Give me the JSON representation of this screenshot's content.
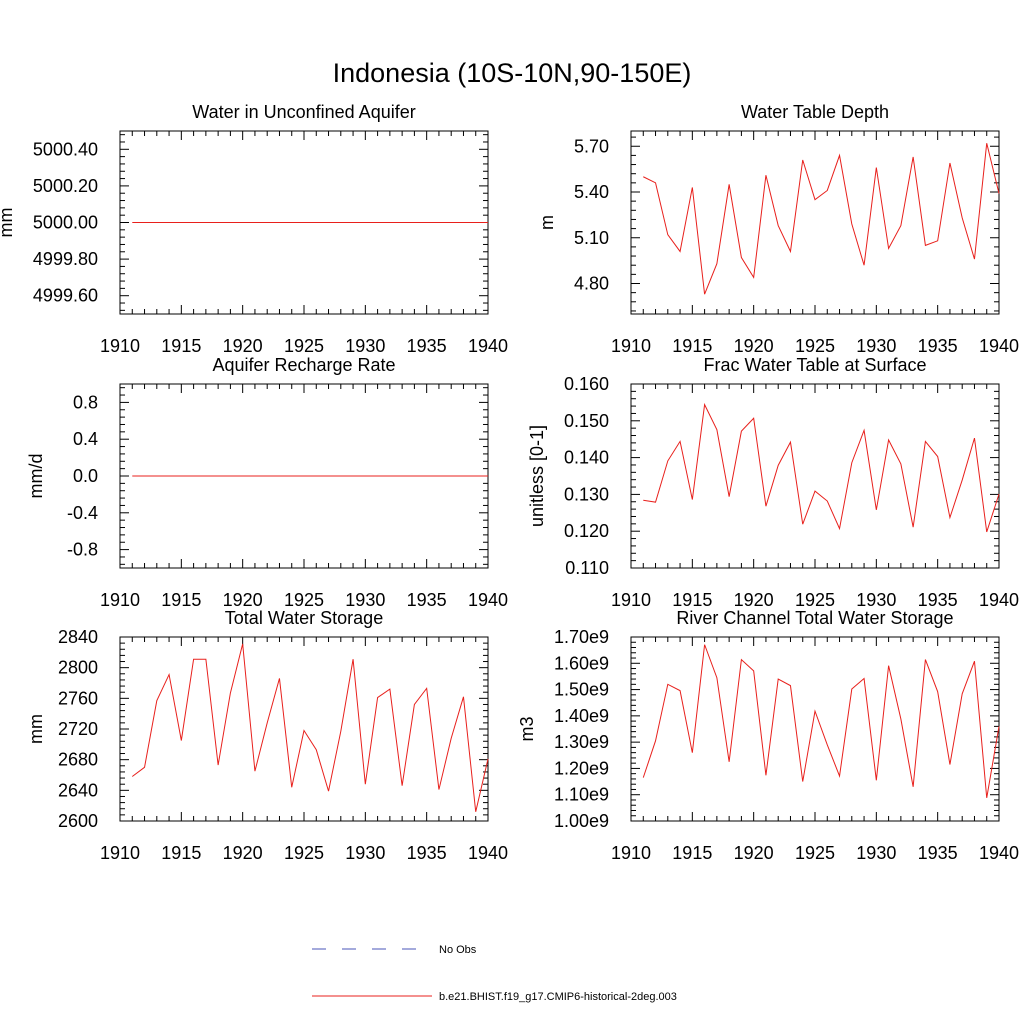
{
  "figure": {
    "title": "Indonesia (10S-10N,90-150E)"
  },
  "legend": {
    "entries": [
      {
        "label": "No Obs",
        "style": "dashed",
        "color": "#4a55b8"
      },
      {
        "label": "b.e21.BHIST.f19_g17.CMIP6-historical-2deg.003",
        "style": "solid",
        "color": "#e8201c"
      }
    ]
  },
  "chart_data": [
    {
      "type": "line",
      "title": "Water in Unconfined Aquifer",
      "ylabel": "mm",
      "xlim": [
        1910,
        1940
      ],
      "ylim": [
        4999.5,
        5000.5
      ],
      "xticks": [
        "1910",
        "1915",
        "1920",
        "1925",
        "1930",
        "1935",
        "1940"
      ],
      "yticks": [
        "4999.60",
        "4999.80",
        "5000.00",
        "5000.20",
        "5000.40"
      ],
      "ytick_values": [
        4999.6,
        4999.8,
        5000.0,
        5000.2,
        5000.4
      ],
      "grid": false,
      "series": [
        {
          "color": "#e8201c",
          "x": [
            1911,
            1912,
            1913,
            1914,
            1915,
            1916,
            1917,
            1918,
            1919,
            1920,
            1921,
            1922,
            1923,
            1924,
            1925,
            1926,
            1927,
            1928,
            1929,
            1930,
            1931,
            1932,
            1933,
            1934,
            1935,
            1936,
            1937,
            1938,
            1939,
            1940
          ],
          "y": [
            5000,
            5000,
            5000,
            5000,
            5000,
            5000,
            5000,
            5000,
            5000,
            5000,
            5000,
            5000,
            5000,
            5000,
            5000,
            5000,
            5000,
            5000,
            5000,
            5000,
            5000,
            5000,
            5000,
            5000,
            5000,
            5000,
            5000,
            5000,
            5000,
            5000
          ]
        }
      ]
    },
    {
      "type": "line",
      "title": "Water Table Depth",
      "ylabel": "m",
      "xlim": [
        1910,
        1940
      ],
      "ylim": [
        4.6,
        5.8
      ],
      "xticks": [
        "1910",
        "1915",
        "1920",
        "1925",
        "1930",
        "1935",
        "1940"
      ],
      "yticks": [
        "4.80",
        "5.10",
        "5.40",
        "5.70"
      ],
      "ytick_values": [
        4.8,
        5.1,
        5.4,
        5.7
      ],
      "grid": false,
      "series": [
        {
          "color": "#e8201c",
          "x": [
            1911,
            1912,
            1913,
            1914,
            1915,
            1916,
            1917,
            1918,
            1919,
            1920,
            1921,
            1922,
            1923,
            1924,
            1925,
            1926,
            1927,
            1928,
            1929,
            1930,
            1931,
            1932,
            1933,
            1934,
            1935,
            1936,
            1937,
            1938,
            1939,
            1940
          ],
          "y": [
            5.5,
            5.46,
            5.12,
            5.01,
            5.43,
            4.73,
            4.93,
            5.45,
            4.97,
            4.84,
            5.51,
            5.18,
            5.01,
            5.61,
            5.35,
            5.41,
            5.64,
            5.19,
            4.92,
            5.56,
            5.03,
            5.18,
            5.63,
            5.05,
            5.08,
            5.59,
            5.23,
            4.96,
            5.72,
            5.39
          ]
        }
      ]
    },
    {
      "type": "line",
      "title": "Aquifer Recharge Rate",
      "ylabel": "mm/d",
      "xlim": [
        1910,
        1940
      ],
      "ylim": [
        -1.0,
        1.0
      ],
      "xticks": [
        "1910",
        "1915",
        "1920",
        "1925",
        "1930",
        "1935",
        "1940"
      ],
      "yticks": [
        "-0.8",
        "-0.4",
        "0.0",
        "0.4",
        "0.8"
      ],
      "ytick_values": [
        -0.8,
        -0.4,
        0.0,
        0.4,
        0.8
      ],
      "grid": false,
      "series": [
        {
          "color": "#e8201c",
          "x": [
            1911,
            1912,
            1913,
            1914,
            1915,
            1916,
            1917,
            1918,
            1919,
            1920,
            1921,
            1922,
            1923,
            1924,
            1925,
            1926,
            1927,
            1928,
            1929,
            1930,
            1931,
            1932,
            1933,
            1934,
            1935,
            1936,
            1937,
            1938,
            1939,
            1940
          ],
          "y": [
            0,
            0,
            0,
            0,
            0,
            0,
            0,
            0,
            0,
            0,
            0,
            0,
            0,
            0,
            0,
            0,
            0,
            0,
            0,
            0,
            0,
            0,
            0,
            0,
            0,
            0,
            0,
            0,
            0,
            0
          ]
        }
      ]
    },
    {
      "type": "line",
      "title": "Frac Water Table at Surface",
      "ylabel": "unitless [0-1]",
      "xlim": [
        1910,
        1940
      ],
      "ylim": [
        0.11,
        0.16
      ],
      "xticks": [
        "1910",
        "1915",
        "1920",
        "1925",
        "1930",
        "1935",
        "1940"
      ],
      "yticks": [
        "0.110",
        "0.120",
        "0.130",
        "0.140",
        "0.150",
        "0.160"
      ],
      "ytick_values": [
        0.11,
        0.12,
        0.13,
        0.14,
        0.15,
        0.16
      ],
      "grid": false,
      "series": [
        {
          "color": "#e8201c",
          "x": [
            1911,
            1912,
            1913,
            1914,
            1915,
            1916,
            1917,
            1918,
            1919,
            1920,
            1921,
            1922,
            1923,
            1924,
            1925,
            1926,
            1927,
            1928,
            1929,
            1930,
            1931,
            1932,
            1933,
            1934,
            1935,
            1936,
            1937,
            1938,
            1939,
            1940
          ],
          "y": [
            0.1284,
            0.1279,
            0.1391,
            0.1444,
            0.1286,
            0.1544,
            0.1476,
            0.1294,
            0.1472,
            0.1507,
            0.1268,
            0.1379,
            0.1442,
            0.1219,
            0.1309,
            0.1282,
            0.1207,
            0.1386,
            0.1474,
            0.1258,
            0.1448,
            0.1383,
            0.1211,
            0.1444,
            0.1403,
            0.1237,
            0.1339,
            0.1453,
            0.1198,
            0.1301
          ]
        }
      ]
    },
    {
      "type": "line",
      "title": "Total Water Storage",
      "ylabel": "mm",
      "xlim": [
        1910,
        1940
      ],
      "ylim": [
        2600,
        2840
      ],
      "xticks": [
        "1910",
        "1915",
        "1920",
        "1925",
        "1930",
        "1935",
        "1940"
      ],
      "yticks": [
        "2600",
        "2640",
        "2680",
        "2720",
        "2760",
        "2800",
        "2840"
      ],
      "ytick_values": [
        2600,
        2640,
        2680,
        2720,
        2760,
        2800,
        2840
      ],
      "grid": false,
      "series": [
        {
          "color": "#e8201c",
          "x": [
            1911,
            1912,
            1913,
            1914,
            1915,
            1916,
            1917,
            1918,
            1919,
            1920,
            1921,
            1922,
            1923,
            1924,
            1925,
            1926,
            1927,
            1928,
            1929,
            1930,
            1931,
            1932,
            1933,
            1934,
            1935,
            1936,
            1937,
            1938,
            1939,
            1940
          ],
          "y": [
            2658,
            2670,
            2757,
            2791,
            2705,
            2811,
            2811,
            2673,
            2767,
            2831,
            2665,
            2728,
            2786,
            2644,
            2718,
            2693,
            2639,
            2717,
            2811,
            2648,
            2761,
            2772,
            2646,
            2752,
            2773,
            2641,
            2708,
            2762,
            2612,
            2681
          ]
        }
      ]
    },
    {
      "type": "line",
      "title": "River Channel Total Water Storage",
      "ylabel": "m3",
      "xlim": [
        1910,
        1940
      ],
      "ylim": [
        1000000000.0,
        1700000000.0
      ],
      "xticks": [
        "1910",
        "1915",
        "1920",
        "1925",
        "1930",
        "1935",
        "1940"
      ],
      "yticks": [
        "1.00e9",
        "1.10e9",
        "1.20e9",
        "1.30e9",
        "1.40e9",
        "1.50e9",
        "1.60e9",
        "1.70e9"
      ],
      "ytick_values": [
        1000000000.0,
        1100000000.0,
        1200000000.0,
        1300000000.0,
        1400000000.0,
        1500000000.0,
        1600000000.0,
        1700000000.0
      ],
      "grid": false,
      "series": [
        {
          "color": "#e8201c",
          "x": [
            1911,
            1912,
            1913,
            1914,
            1915,
            1916,
            1917,
            1918,
            1919,
            1920,
            1921,
            1922,
            1923,
            1924,
            1925,
            1926,
            1927,
            1928,
            1929,
            1930,
            1931,
            1932,
            1933,
            1934,
            1935,
            1936,
            1937,
            1938,
            1939,
            1940
          ],
          "y": [
            1165000000.0,
            1305000000.0,
            1520000000.0,
            1496000000.0,
            1260000000.0,
            1671000000.0,
            1545000000.0,
            1225000000.0,
            1614000000.0,
            1571000000.0,
            1174000000.0,
            1540000000.0,
            1515000000.0,
            1150000000.0,
            1418000000.0,
            1290000000.0,
            1171000000.0,
            1502000000.0,
            1542000000.0,
            1155000000.0,
            1591000000.0,
            1388000000.0,
            1130000000.0,
            1614000000.0,
            1492000000.0,
            1215000000.0,
            1484000000.0,
            1608000000.0,
            1088000000.0,
            1360000000.0
          ]
        }
      ]
    }
  ]
}
